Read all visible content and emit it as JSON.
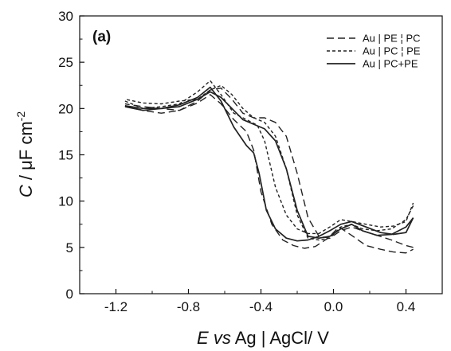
{
  "chart_data": {
    "type": "line",
    "panel_label": "(a)",
    "xlabel": {
      "italic_part": "E vs",
      "rest": " Ag | AgCl/ V"
    },
    "ylabel": {
      "italic_part": "C",
      "rest": " / μF cm",
      "superscript": "-2"
    },
    "xlim": [
      -1.4,
      0.6
    ],
    "ylim": [
      0,
      30
    ],
    "x_ticks": [
      -1.2,
      -0.8,
      -0.4,
      0.0,
      0.4
    ],
    "x_tick_labels": [
      "-1.2",
      "-0.8",
      "-0.4",
      "0.0",
      "0.4"
    ],
    "y_ticks": [
      0,
      5,
      10,
      15,
      20,
      25,
      30
    ],
    "y_tick_labels": [
      "0",
      "5",
      "10",
      "15",
      "20",
      "25",
      "30"
    ],
    "grid": false,
    "legend_placement": "top-right",
    "series": [
      {
        "name": "Au | PE ¦ PC",
        "dash": "long-dash",
        "curves": [
          {
            "x": [
              -1.15,
              -1.05,
              -0.95,
              -0.85,
              -0.75,
              -0.68,
              -0.62,
              -0.55,
              -0.48,
              -0.44,
              -0.4,
              -0.34,
              -0.28,
              -0.22,
              -0.16,
              -0.1,
              -0.03,
              0.03,
              0.1,
              0.18,
              0.26,
              0.33,
              0.4,
              0.44
            ],
            "y": [
              20.3,
              19.8,
              19.5,
              19.8,
              20.6,
              21.5,
              20.5,
              18.8,
              17.5,
              15.5,
              11.0,
              7.5,
              5.8,
              5.2,
              4.9,
              5.1,
              6.0,
              7.2,
              6.3,
              5.2,
              4.8,
              4.5,
              4.4,
              4.8
            ]
          },
          {
            "x": [
              0.44,
              0.4,
              0.32,
              0.24,
              0.16,
              0.1,
              0.04,
              -0.02,
              -0.08,
              -0.14,
              -0.2,
              -0.26,
              -0.32,
              -0.38,
              -0.44,
              -0.5,
              -0.56,
              -0.62,
              -0.68,
              -0.75,
              -0.85,
              -0.95,
              -1.05,
              -1.15
            ],
            "y": [
              5.0,
              5.2,
              5.8,
              6.3,
              6.8,
              7.2,
              6.8,
              6.0,
              6.2,
              8.2,
              13.0,
              17.0,
              18.5,
              19.0,
              19.0,
              19.5,
              21.0,
              22.2,
              22.0,
              20.8,
              19.8,
              20.0,
              20.2,
              20.5
            ]
          }
        ]
      },
      {
        "name": "Au | PC ¦ PE",
        "dash": "short-dash",
        "curves": [
          {
            "x": [
              -1.15,
              -1.05,
              -0.95,
              -0.85,
              -0.75,
              -0.68,
              -0.62,
              -0.55,
              -0.48,
              -0.42,
              -0.38,
              -0.32,
              -0.26,
              -0.2,
              -0.14,
              -0.08,
              -0.02,
              0.04,
              0.1,
              0.18,
              0.26,
              0.33,
              0.4,
              0.44
            ],
            "y": [
              20.8,
              20.0,
              20.2,
              20.5,
              21.8,
              23.0,
              21.5,
              19.5,
              18.8,
              18.2,
              16.5,
              11.5,
              8.5,
              7.0,
              6.5,
              6.5,
              7.2,
              8.0,
              7.8,
              7.5,
              7.2,
              7.3,
              7.8,
              9.8
            ]
          },
          {
            "x": [
              0.44,
              0.4,
              0.32,
              0.24,
              0.16,
              0.1,
              0.04,
              -0.02,
              -0.08,
              -0.14,
              -0.2,
              -0.26,
              -0.32,
              -0.38,
              -0.44,
              -0.5,
              -0.56,
              -0.62,
              -0.68,
              -0.75,
              -0.85,
              -0.95,
              -1.05,
              -1.15
            ],
            "y": [
              9.5,
              8.0,
              7.0,
              6.8,
              7.0,
              7.5,
              7.2,
              6.0,
              5.8,
              6.0,
              8.5,
              13.5,
              17.0,
              18.5,
              19.0,
              20.0,
              21.5,
              22.5,
              22.0,
              21.0,
              20.8,
              20.5,
              20.6,
              21.0
            ]
          }
        ]
      },
      {
        "name": "Au | PC+PE",
        "dash": "solid",
        "curves": [
          {
            "x": [
              -1.15,
              -1.05,
              -0.95,
              -0.85,
              -0.75,
              -0.68,
              -0.62,
              -0.55,
              -0.48,
              -0.44,
              -0.41,
              -0.37,
              -0.32,
              -0.26,
              -0.2,
              -0.14,
              -0.08,
              -0.02,
              0.04,
              0.1,
              0.18,
              0.26,
              0.33,
              0.4,
              0.44
            ],
            "y": [
              20.2,
              19.8,
              20.0,
              20.4,
              21.2,
              22.3,
              20.8,
              18.0,
              16.0,
              15.2,
              13.0,
              9.0,
              7.0,
              6.0,
              5.7,
              5.8,
              6.2,
              6.8,
              7.5,
              7.8,
              7.2,
              6.6,
              6.4,
              6.6,
              8.2
            ]
          },
          {
            "x": [
              0.44,
              0.4,
              0.32,
              0.24,
              0.16,
              0.1,
              0.04,
              -0.02,
              -0.08,
              -0.14,
              -0.2,
              -0.26,
              -0.32,
              -0.38,
              -0.44,
              -0.5,
              -0.56,
              -0.62,
              -0.68,
              -0.75,
              -0.85,
              -0.95,
              -1.05,
              -1.15
            ],
            "y": [
              8.2,
              7.2,
              6.4,
              6.3,
              6.8,
              7.5,
              7.0,
              6.2,
              6.0,
              6.2,
              9.0,
              13.5,
              16.5,
              17.8,
              18.3,
              18.8,
              20.0,
              21.2,
              21.8,
              21.0,
              20.2,
              20.0,
              20.0,
              20.3
            ]
          }
        ]
      }
    ]
  }
}
